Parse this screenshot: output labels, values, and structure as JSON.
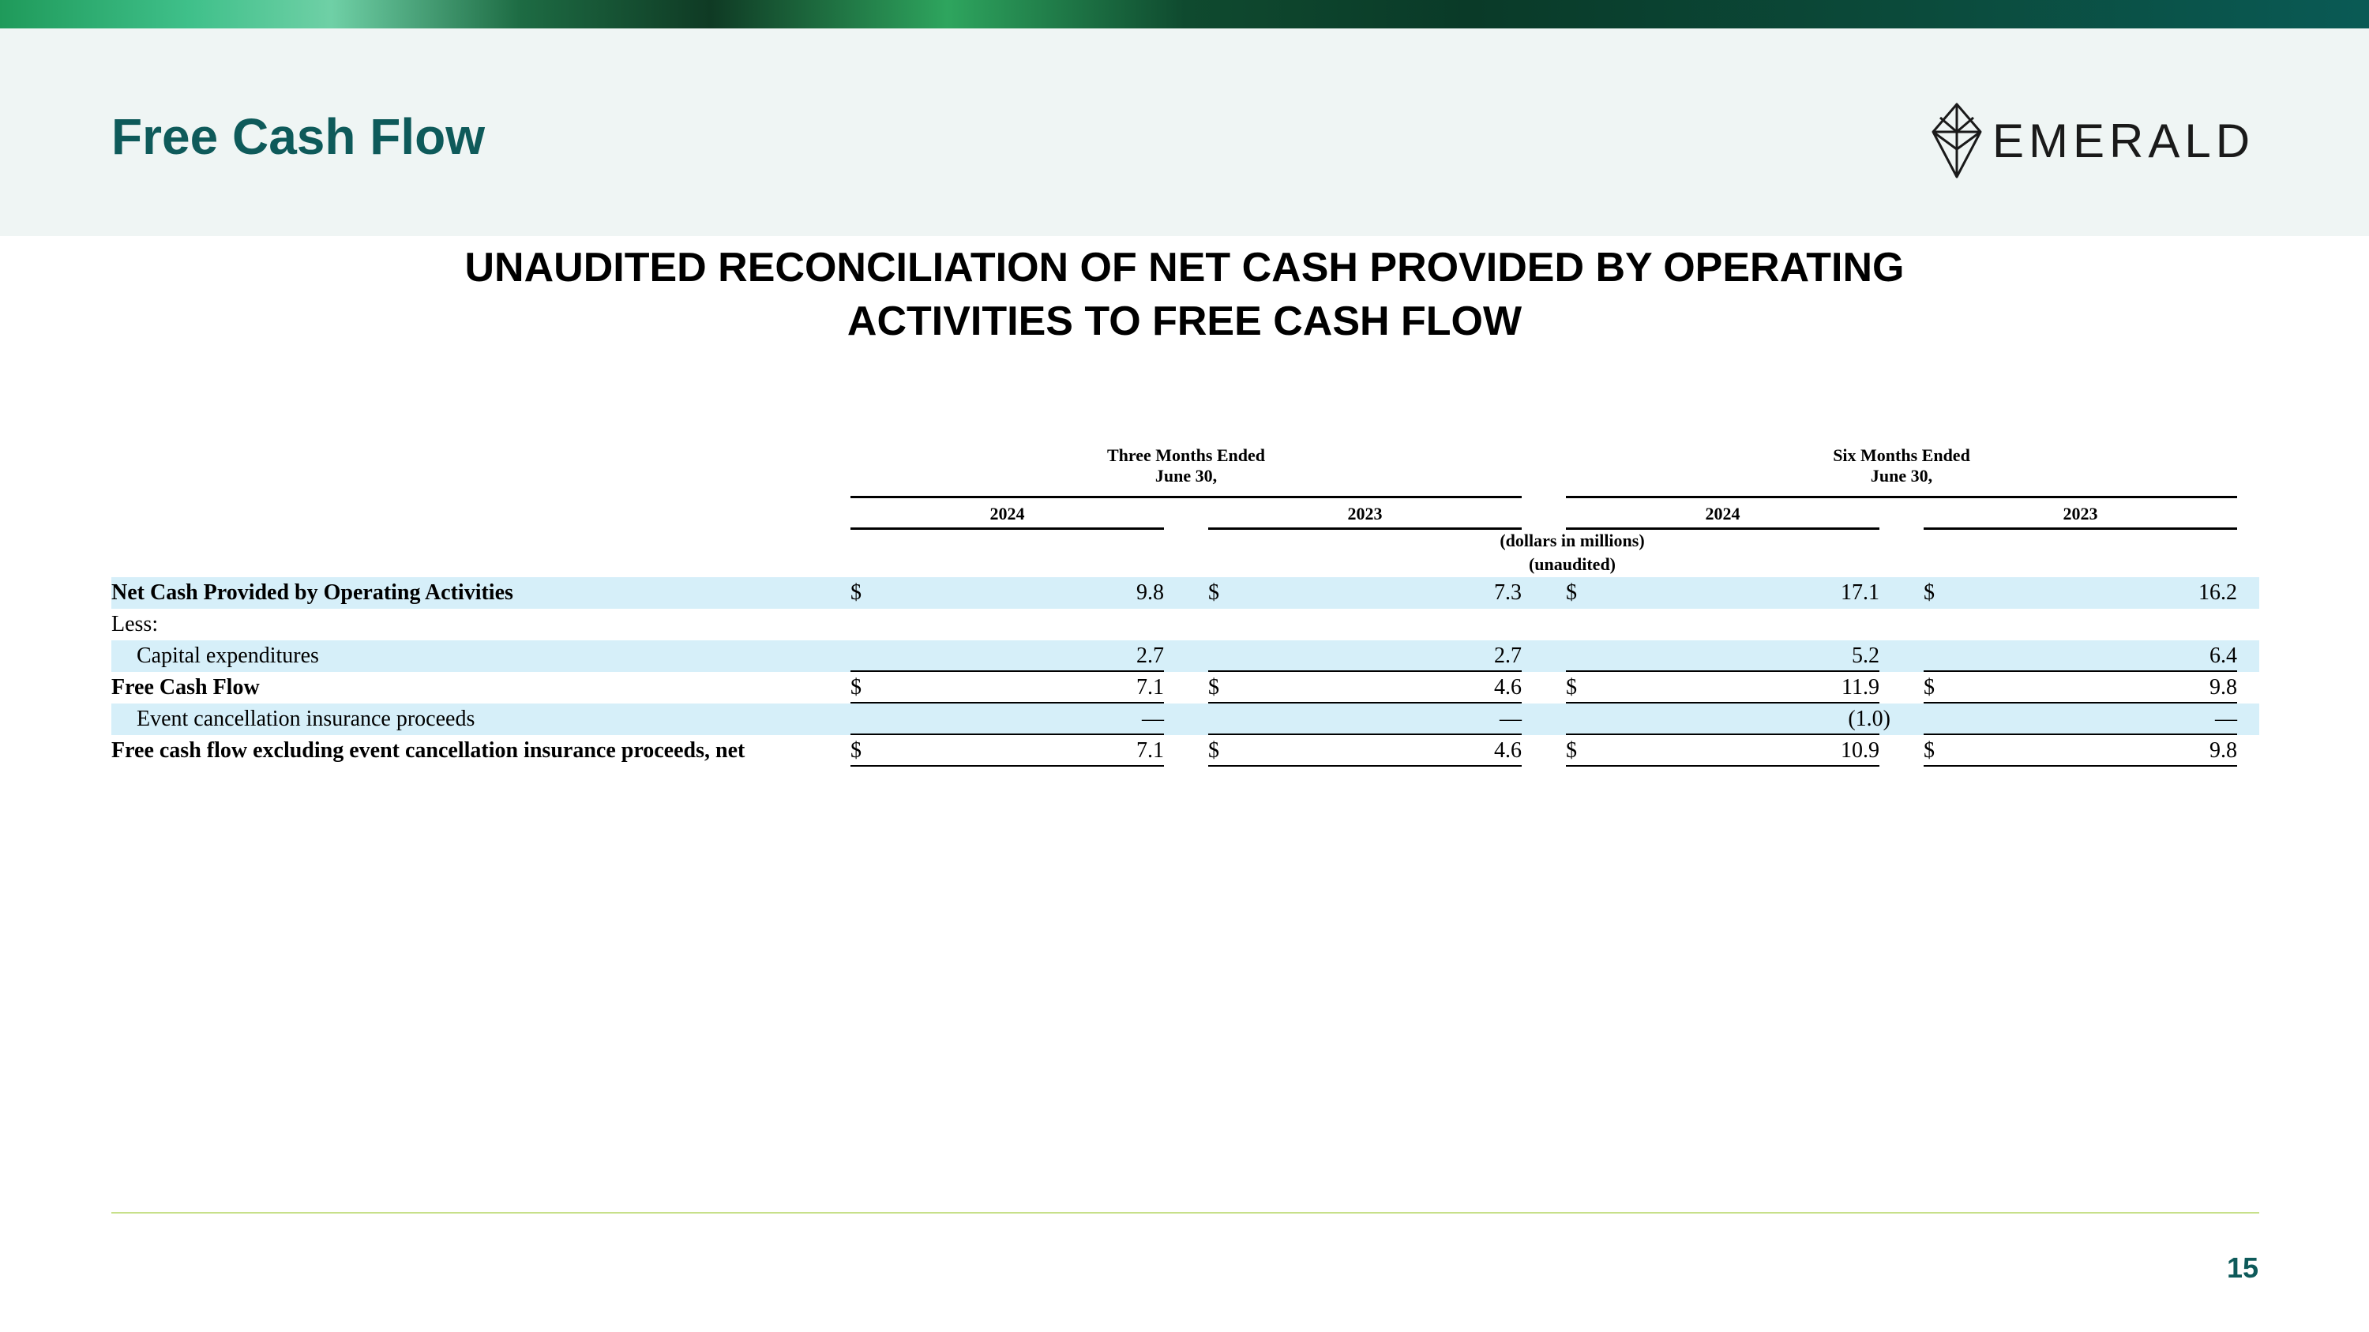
{
  "header": {
    "title": "Free Cash Flow",
    "logo_text": "EMERALD",
    "logo_icon": "emerald-gem-icon"
  },
  "heading": {
    "line1": "UNAUDITED RECONCILIATION OF NET CASH PROVIDED BY OPERATING",
    "line2": "ACTIVITIES TO FREE CASH FLOW"
  },
  "table": {
    "groups": [
      {
        "line1": "Three Months Ended",
        "line2": "June 30,"
      },
      {
        "line1": "Six Months Ended",
        "line2": "June 30,"
      }
    ],
    "years": [
      "2024",
      "2023",
      "2024",
      "2023"
    ],
    "note_line1": "(dollars in millions)",
    "note_line2": "(unaudited)",
    "rows": [
      {
        "label": "Net Cash Provided by Operating Activities",
        "values": [
          "9.8",
          "7.3",
          "17.1",
          "16.2"
        ],
        "dollar": [
          "$",
          "$",
          "$",
          "$"
        ]
      },
      {
        "label": "Less:",
        "values": [
          "",
          "",
          "",
          ""
        ],
        "dollar": [
          "",
          "",
          "",
          ""
        ]
      },
      {
        "label": "Capital expenditures",
        "values": [
          "2.7",
          "2.7",
          "5.2",
          "6.4"
        ],
        "dollar": [
          "",
          "",
          "",
          ""
        ]
      },
      {
        "label": "Free Cash Flow",
        "values": [
          "7.1",
          "4.6",
          "11.9",
          "9.8"
        ],
        "dollar": [
          "$",
          "$",
          "$",
          "$"
        ]
      },
      {
        "label": "Event cancellation insurance proceeds",
        "values": [
          "—",
          "—",
          "(1.0)",
          "—"
        ],
        "dollar": [
          "",
          "",
          "",
          ""
        ]
      },
      {
        "label": "Free cash flow excluding event cancellation insurance proceeds, net",
        "values": [
          "7.1",
          "4.6",
          "10.9",
          "9.8"
        ],
        "dollar": [
          "$",
          "$",
          "$",
          "$"
        ]
      }
    ]
  },
  "footer": {
    "page_number": "15"
  },
  "colors": {
    "title": "#0e5a5a",
    "header_panel": "#eff5f4",
    "row_shade": "#d6eff9",
    "footer_rule": "#c7e08a"
  }
}
